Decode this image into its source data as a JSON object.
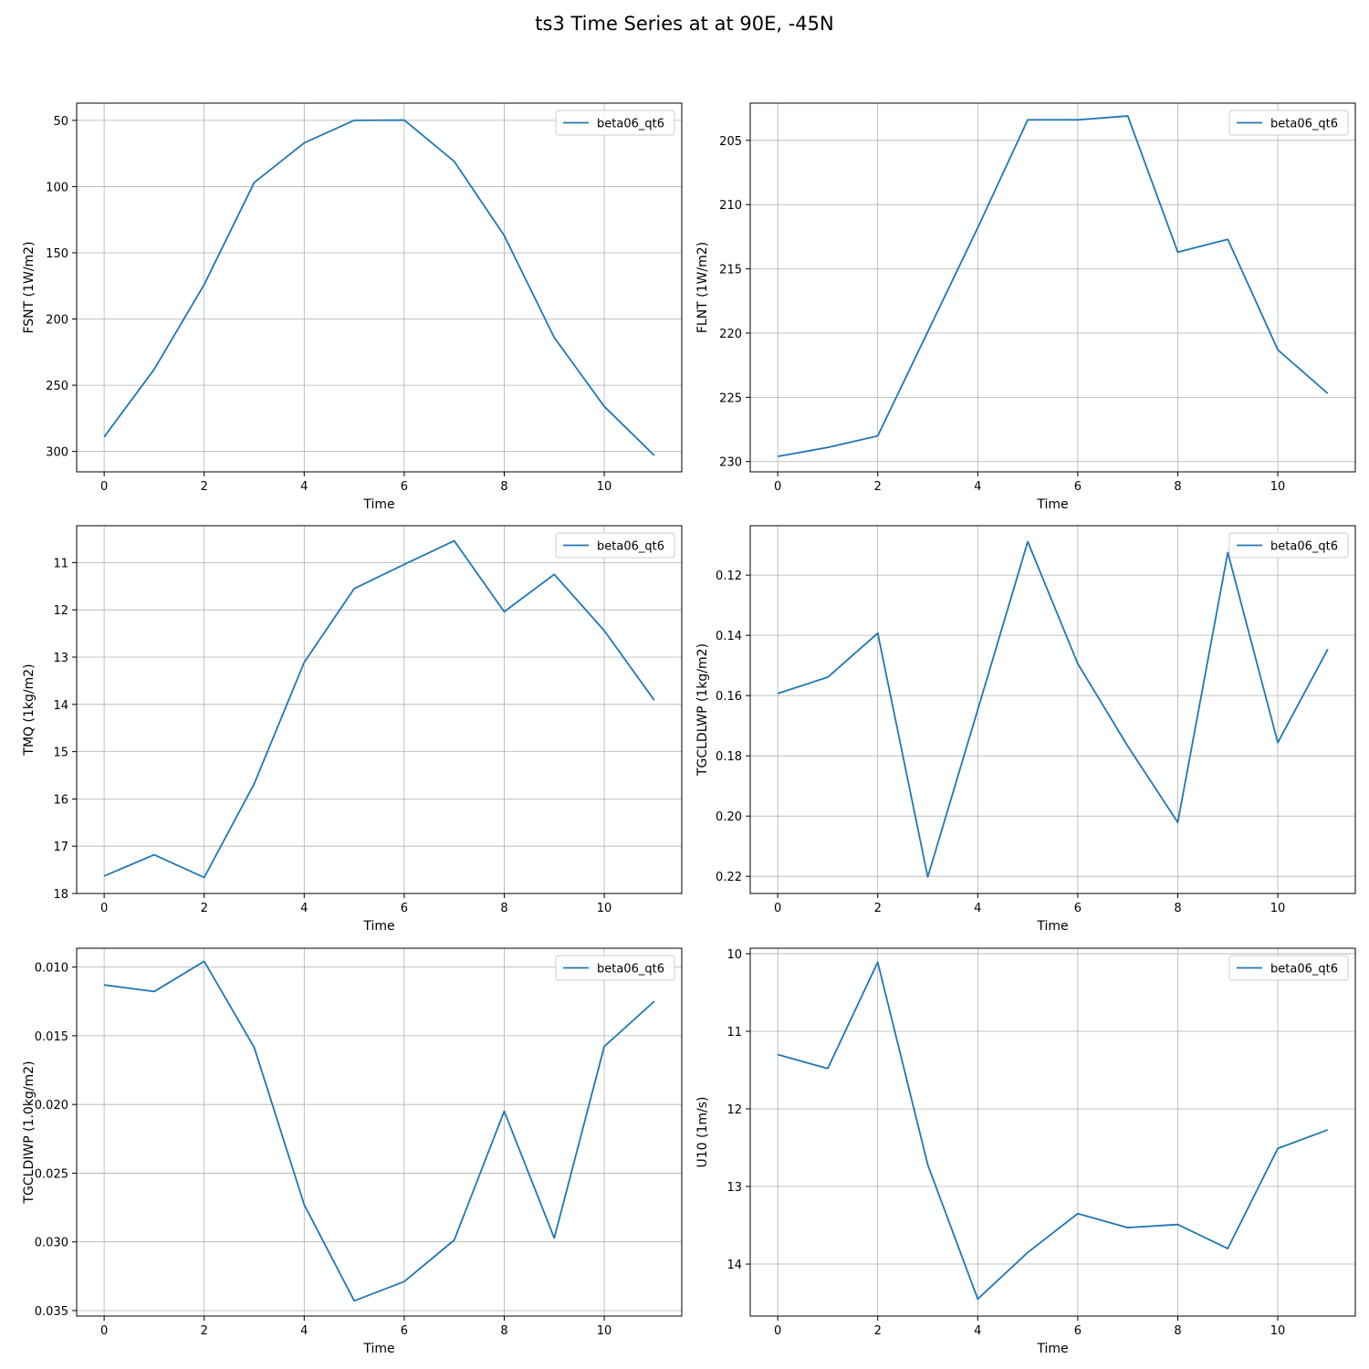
{
  "figure": {
    "title": "ts3 Time Series at at 90E, -45N"
  },
  "chart_data": [
    {
      "type": "line",
      "title": "",
      "xlabel": "Time",
      "ylabel": "FSNT (1W/m2)",
      "y_inverted": true,
      "xlim": [
        -0.55,
        11.55
      ],
      "ylim": [
        315.4,
        37.0
      ],
      "xticks": [
        0,
        2,
        4,
        6,
        8,
        10
      ],
      "yticks": [
        50,
        100,
        150,
        200,
        250,
        300
      ],
      "ytick_labels": [
        "50",
        "100",
        "150",
        "200",
        "250",
        "300"
      ],
      "grid": true,
      "legend": "top-right",
      "series": [
        {
          "name": "beta06_qt6",
          "color": "#1f77b4",
          "x": [
            0,
            1,
            2,
            3,
            4,
            5,
            6,
            7,
            8,
            9,
            10,
            11
          ],
          "values": [
            289.0,
            238.0,
            174.0,
            97.0,
            67.0,
            50.0,
            49.8,
            81.0,
            137.0,
            214.0,
            266.0,
            303.0
          ]
        }
      ]
    },
    {
      "type": "line",
      "title": "",
      "xlabel": "Time",
      "ylabel": "FLNT (1W/m2)",
      "y_inverted": true,
      "xlim": [
        -0.55,
        11.55
      ],
      "ylim": [
        230.8,
        202.1
      ],
      "xticks": [
        0,
        2,
        4,
        6,
        8,
        10
      ],
      "yticks": [
        205,
        210,
        215,
        220,
        225,
        230
      ],
      "ytick_labels": [
        "205",
        "210",
        "215",
        "220",
        "225",
        "230"
      ],
      "grid": true,
      "legend": "top-right",
      "series": [
        {
          "name": "beta06_qt6",
          "color": "#1f77b4",
          "x": [
            0,
            1,
            2,
            3,
            4,
            5,
            6,
            7,
            8,
            9,
            10,
            11
          ],
          "values": [
            229.6,
            228.9,
            228.0,
            219.9,
            211.8,
            203.4,
            203.4,
            203.1,
            213.7,
            212.7,
            221.3,
            224.7
          ]
        }
      ]
    },
    {
      "type": "line",
      "title": "",
      "xlabel": "Time",
      "ylabel": "TMQ (1kg/m2)",
      "y_inverted": true,
      "xlim": [
        -0.55,
        11.55
      ],
      "ylim": [
        18.0,
        10.22
      ],
      "xticks": [
        0,
        2,
        4,
        6,
        8,
        10
      ],
      "yticks": [
        11,
        12,
        13,
        14,
        15,
        16,
        17,
        18
      ],
      "ytick_labels": [
        "11",
        "12",
        "13",
        "14",
        "15",
        "16",
        "17",
        "18"
      ],
      "grid": true,
      "legend": "top-right",
      "series": [
        {
          "name": "beta06_qt6",
          "color": "#1f77b4",
          "x": [
            0,
            1,
            2,
            3,
            4,
            5,
            6,
            7,
            8,
            9,
            10,
            11
          ],
          "values": [
            17.63,
            17.18,
            17.66,
            15.68,
            13.11,
            11.55,
            11.04,
            10.54,
            12.04,
            11.25,
            12.44,
            13.91
          ]
        }
      ]
    },
    {
      "type": "line",
      "title": "",
      "xlabel": "Time",
      "ylabel": "TGCLDLWP (1kg/m2)",
      "y_inverted": true,
      "xlim": [
        -0.55,
        11.55
      ],
      "ylim": [
        0.2257,
        0.1036
      ],
      "xticks": [
        0,
        2,
        4,
        6,
        8,
        10
      ],
      "yticks": [
        0.12,
        0.14,
        0.16,
        0.18,
        0.2,
        0.22
      ],
      "ytick_labels": [
        "0.12",
        "0.14",
        "0.16",
        "0.18",
        "0.20",
        "0.22"
      ],
      "grid": true,
      "legend": "top-right",
      "series": [
        {
          "name": "beta06_qt6",
          "color": "#1f77b4",
          "x": [
            0,
            1,
            2,
            3,
            4,
            5,
            6,
            7,
            8,
            9,
            10,
            11
          ],
          "values": [
            0.1593,
            0.1539,
            0.1393,
            0.2202,
            0.1647,
            0.1089,
            0.1494,
            0.1768,
            0.2021,
            0.1125,
            0.1756,
            0.1446
          ]
        }
      ]
    },
    {
      "type": "line",
      "title": "",
      "xlabel": "Time",
      "ylabel": "TGCLDIWP (1.0kg/m2)",
      "y_inverted": true,
      "xlim": [
        -0.55,
        11.55
      ],
      "ylim": [
        0.0354,
        0.00863
      ],
      "xticks": [
        0,
        2,
        4,
        6,
        8,
        10
      ],
      "yticks": [
        0.01,
        0.015,
        0.02,
        0.025,
        0.03,
        0.035
      ],
      "ytick_labels": [
        "0.010",
        "0.015",
        "0.020",
        "0.025",
        "0.030",
        "0.035"
      ],
      "grid": true,
      "legend": "top-right",
      "series": [
        {
          "name": "beta06_qt6",
          "color": "#1f77b4",
          "x": [
            0,
            1,
            2,
            3,
            4,
            5,
            6,
            7,
            8,
            9,
            10,
            11
          ],
          "values": [
            0.0113,
            0.01178,
            0.00958,
            0.01585,
            0.02729,
            0.03429,
            0.03289,
            0.02987,
            0.02049,
            0.02972,
            0.01578,
            0.01249
          ]
        }
      ]
    },
    {
      "type": "line",
      "title": "",
      "xlabel": "Time",
      "ylabel": "U10 (1m/s)",
      "y_inverted": true,
      "xlim": [
        -0.55,
        11.55
      ],
      "ylim": [
        14.67,
        9.93
      ],
      "xticks": [
        0,
        2,
        4,
        6,
        8,
        10
      ],
      "yticks": [
        10,
        11,
        12,
        13,
        14
      ],
      "ytick_labels": [
        "10",
        "11",
        "12",
        "13",
        "14"
      ],
      "grid": true,
      "legend": "top-right",
      "series": [
        {
          "name": "beta06_qt6",
          "color": "#1f77b4",
          "x": [
            0,
            1,
            2,
            3,
            4,
            5,
            6,
            7,
            8,
            9,
            10,
            11
          ],
          "values": [
            11.3,
            11.48,
            10.11,
            12.72,
            14.45,
            13.85,
            13.35,
            13.53,
            13.49,
            13.8,
            12.51,
            12.27
          ]
        }
      ]
    }
  ]
}
